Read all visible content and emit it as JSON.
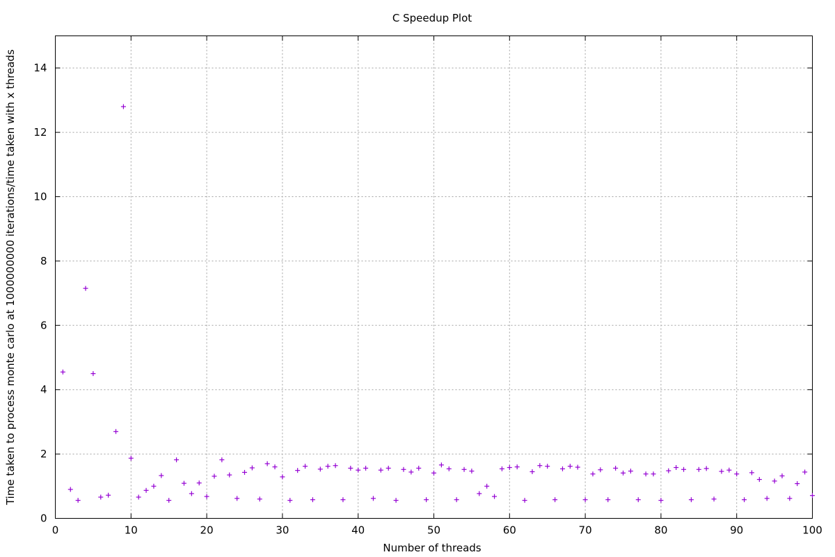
{
  "chart_data": {
    "type": "scatter",
    "title": "C Speedup Plot",
    "xlabel": "Number of threads",
    "ylabel": "Time taken to process monte carlo at 1000000000 iterations/time taken with x threads",
    "xlim": [
      0,
      100
    ],
    "ylim": [
      0,
      15
    ],
    "xticks": [
      0,
      10,
      20,
      30,
      40,
      50,
      60,
      70,
      80,
      90,
      100
    ],
    "yticks": [
      0,
      2,
      4,
      6,
      8,
      10,
      12,
      14
    ],
    "grid": true,
    "marker": "plus",
    "marker_color": "#9400d3",
    "series": [
      {
        "x": [
          1,
          2,
          3,
          4,
          5,
          6,
          7,
          8,
          9,
          10,
          11,
          12,
          13,
          14,
          15,
          16,
          17,
          18,
          19,
          20,
          21,
          22,
          23,
          24,
          25,
          26,
          27,
          28,
          29,
          30,
          31,
          32,
          33,
          34,
          35,
          36,
          37,
          38,
          39,
          40,
          41,
          42,
          43,
          44,
          45,
          46,
          47,
          48,
          49,
          50,
          51,
          52,
          53,
          54,
          55,
          56,
          57,
          58,
          59,
          60,
          61,
          62,
          63,
          64,
          65,
          66,
          67,
          68,
          69,
          70,
          71,
          72,
          73,
          74,
          75,
          76,
          77,
          78,
          79,
          80,
          81,
          82,
          83,
          84,
          85,
          86,
          87,
          88,
          89,
          90,
          91,
          92,
          93,
          94,
          95,
          96,
          97,
          98,
          99,
          100
        ],
        "y": [
          4.55,
          0.9,
          0.56,
          7.15,
          4.5,
          0.66,
          0.72,
          2.7,
          12.8,
          1.87,
          0.66,
          0.87,
          1.0,
          1.33,
          0.56,
          1.82,
          1.09,
          0.77,
          1.1,
          0.68,
          1.31,
          1.82,
          1.35,
          0.62,
          1.43,
          1.57,
          0.6,
          1.7,
          1.6,
          1.29,
          0.56,
          1.49,
          1.62,
          0.58,
          1.53,
          1.62,
          1.64,
          0.58,
          1.56,
          1.5,
          1.56,
          0.62,
          1.5,
          1.56,
          0.56,
          1.52,
          1.44,
          1.56,
          0.58,
          1.41,
          1.66,
          1.54,
          0.58,
          1.52,
          1.47,
          0.77,
          1.0,
          0.68,
          1.54,
          1.58,
          1.6,
          0.56,
          1.45,
          1.64,
          1.62,
          0.58,
          1.54,
          1.62,
          1.59,
          0.58,
          1.38,
          1.51,
          0.58,
          1.56,
          1.41,
          1.47,
          0.58,
          1.38,
          1.38,
          0.56,
          1.48,
          1.58,
          1.52,
          0.58,
          1.52,
          1.55,
          0.6,
          1.46,
          1.5,
          1.38,
          0.58,
          1.42,
          1.21,
          0.62,
          1.16,
          1.32,
          0.62,
          1.08,
          1.44,
          0.71
        ]
      }
    ]
  }
}
